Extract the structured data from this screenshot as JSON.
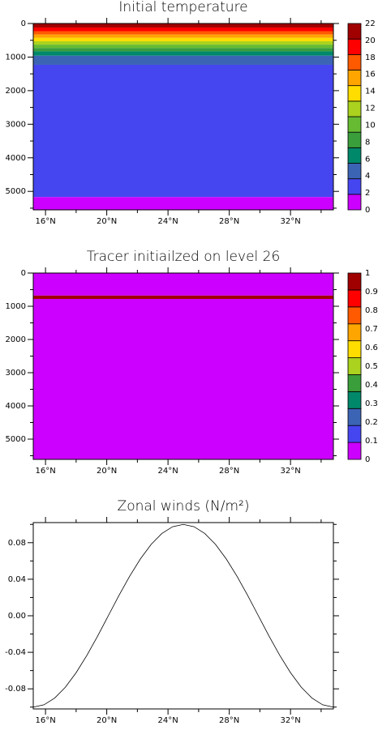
{
  "chart_data": [
    {
      "type": "contour",
      "title": "Initial temperature",
      "xlim": [
        15.2,
        34.8
      ],
      "xticks": [
        {
          "value": 16,
          "label": "16°N"
        },
        {
          "value": 20,
          "label": "20°N"
        },
        {
          "value": 24,
          "label": "24°N"
        },
        {
          "value": 28,
          "label": "28°N"
        },
        {
          "value": 32,
          "label": "32°N"
        }
      ],
      "xminorticks": [
        18,
        22,
        26,
        30,
        34
      ],
      "ylim": [
        0,
        5550
      ],
      "y_inverted": true,
      "yticks": [
        0,
        1000,
        2000,
        3000,
        4000,
        5000
      ],
      "yminorticks": [
        500,
        1500,
        2500,
        3500,
        4500,
        5500
      ],
      "depth_edges": [
        0,
        120,
        230,
        330,
        430,
        530,
        630,
        730,
        830,
        960,
        1230,
        5170,
        5550
      ],
      "values": [
        23,
        21,
        19,
        17,
        15,
        13,
        11,
        9,
        7,
        5,
        3,
        1
      ],
      "levels": [
        0,
        2,
        4,
        6,
        8,
        10,
        12,
        14,
        16,
        18,
        20,
        22
      ],
      "colors": [
        "#cc00ff",
        "#4646f0",
        "#3c64b4",
        "#00886a",
        "#3a9e3a",
        "#66bb33",
        "#aad21e",
        "#ffdd00",
        "#ffa500",
        "#ff5a00",
        "#ff0000",
        "#a00000"
      ]
    },
    {
      "type": "contour",
      "title": "Tracer initiailzed on level 26",
      "xlim": [
        15.2,
        34.8
      ],
      "xticks": [
        {
          "value": 16,
          "label": "16°N"
        },
        {
          "value": 20,
          "label": "20°N"
        },
        {
          "value": 24,
          "label": "24°N"
        },
        {
          "value": 28,
          "label": "28°N"
        },
        {
          "value": 32,
          "label": "32°N"
        }
      ],
      "xminorticks": [
        18,
        22,
        26,
        30,
        34
      ],
      "ylim": [
        0,
        5610
      ],
      "y_inverted": true,
      "yticks": [
        0,
        1000,
        2000,
        3000,
        4000,
        5000
      ],
      "yminorticks": [
        500,
        1500,
        2500,
        3500,
        4500,
        5500
      ],
      "depth_edges": [
        0,
        680,
        780,
        5610
      ],
      "values": [
        0,
        1,
        0
      ],
      "levels": [
        0,
        0.1,
        0.2,
        0.3,
        0.4,
        0.5,
        0.6,
        0.7,
        0.8,
        0.9,
        1
      ],
      "colors": [
        "#cc00ff",
        "#4646f0",
        "#3c64b4",
        "#00886a",
        "#3a9e3a",
        "#aad21e",
        "#ffdd00",
        "#ffa500",
        "#ff5a00",
        "#ff0000",
        "#a00000"
      ]
    },
    {
      "type": "line",
      "title": "Zonal winds (N/m²)",
      "xlim": [
        15.2,
        34.8
      ],
      "xticks": [
        {
          "value": 16,
          "label": "16°N"
        },
        {
          "value": 20,
          "label": "20°N"
        },
        {
          "value": 24,
          "label": "24°N"
        },
        {
          "value": 28,
          "label": "28°N"
        },
        {
          "value": 32,
          "label": "32°N"
        }
      ],
      "xminorticks": [
        18,
        22,
        26,
        30,
        34
      ],
      "ylim": [
        -0.102,
        0.102
      ],
      "yticks": [
        -0.08,
        -0.04,
        {
          "value": 0,
          "label": "0.00"
        },
        0.04,
        0.08
      ],
      "yminorticks": [
        -0.1,
        -0.06,
        -0.02,
        0.02,
        0.06,
        0.1
      ],
      "color": "#000000",
      "x": [
        15.2,
        15.9,
        16.6,
        17.3,
        18.0,
        18.7,
        19.4,
        20.1,
        20.8,
        21.5,
        22.2,
        22.9,
        23.6,
        24.3,
        25.0,
        25.7,
        26.4,
        27.1,
        27.8,
        28.5,
        29.2,
        29.9,
        30.6,
        31.3,
        32.0,
        32.7,
        33.4,
        34.1,
        34.8
      ],
      "values": [
        -0.1,
        -0.0975,
        -0.0901,
        -0.0782,
        -0.0623,
        -0.0434,
        -0.0223,
        0,
        0.0223,
        0.0434,
        0.0623,
        0.0782,
        0.0901,
        0.0975,
        0.1,
        0.0975,
        0.0901,
        0.0782,
        0.0623,
        0.0434,
        0.0223,
        0,
        -0.0223,
        -0.0434,
        -0.0623,
        -0.0782,
        -0.0901,
        -0.0975,
        -0.1
      ]
    }
  ]
}
